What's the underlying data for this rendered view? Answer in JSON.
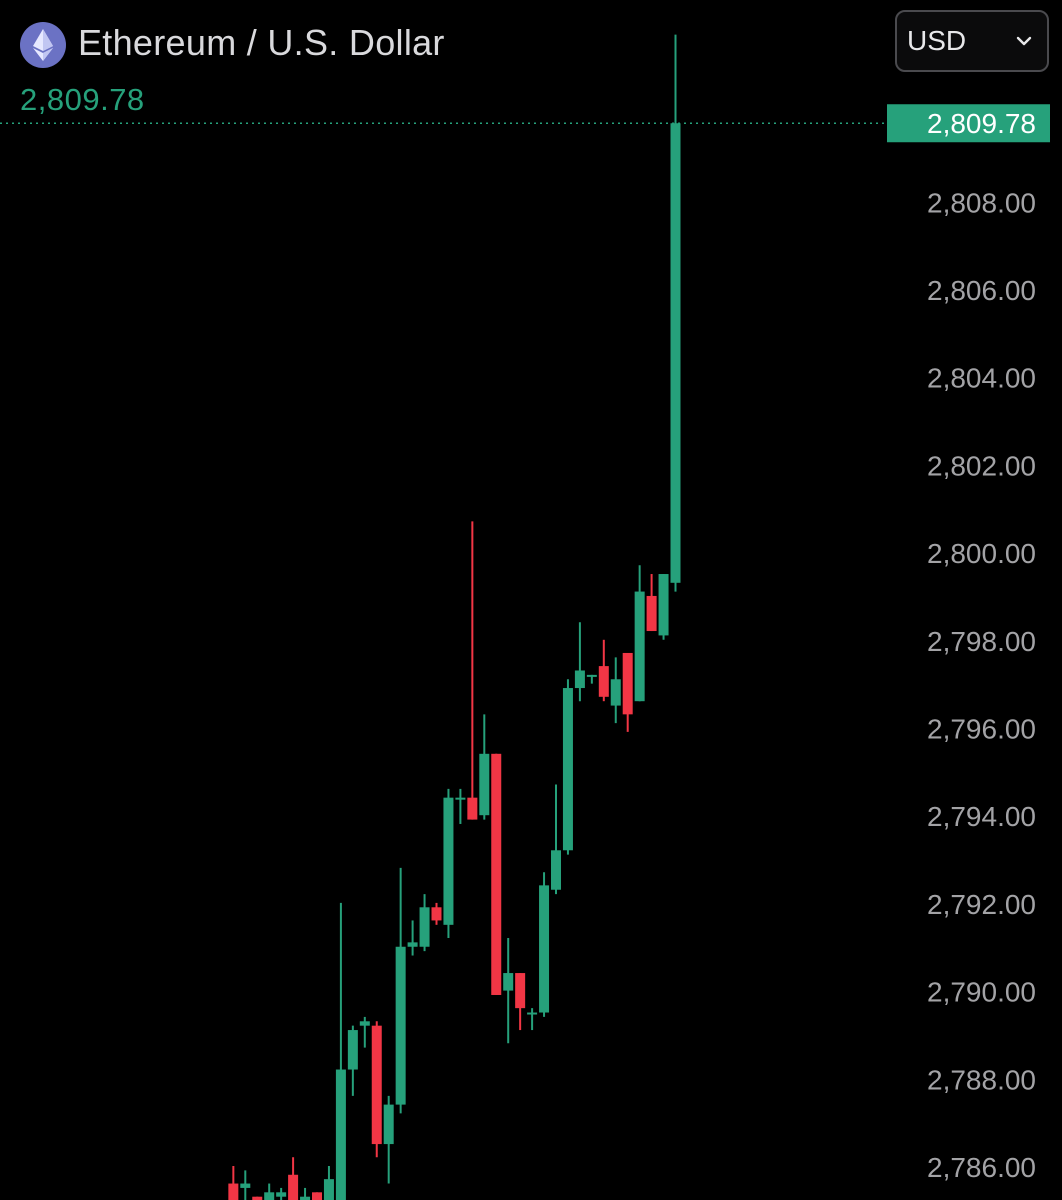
{
  "header": {
    "title": "Ethereum / U.S. Dollar",
    "last_price": "2,809.78",
    "logo_icon": "ethereum-icon"
  },
  "currency_select": {
    "selected": "USD",
    "chevron_icon": "chevron-down-icon"
  },
  "colors": {
    "background": "#000000",
    "up": "#26a17b",
    "down": "#f23645",
    "axis_text": "#a3a3a6",
    "price_line": "#26a17b"
  },
  "chart_data": {
    "type": "candlestick",
    "price_axis": {
      "ticks": [
        2786,
        2788,
        2790,
        2792,
        2794,
        2796,
        2798,
        2800,
        2802,
        2804,
        2806,
        2808
      ],
      "tick_labels": [
        "2,786.00",
        "2,788.00",
        "2,790.00",
        "2,792.00",
        "2,794.00",
        "2,796.00",
        "2,798.00",
        "2,800.00",
        "2,802.00",
        "2,804.00",
        "2,806.00",
        "2,808.00"
      ],
      "range": [
        2785.2,
        2812.0
      ],
      "position": "right"
    },
    "current_price": {
      "value": 2809.78,
      "label": "2,809.78"
    },
    "candles": [
      {
        "open": 2785.6,
        "high": 2786.0,
        "low": 2785.2,
        "close": 2785.2
      },
      {
        "open": 2785.5,
        "high": 2785.9,
        "low": 2785.2,
        "close": 2785.6
      },
      {
        "open": 2785.3,
        "high": 2785.3,
        "low": 2785.2,
        "close": 2785.2
      },
      {
        "open": 2785.2,
        "high": 2785.6,
        "low": 2785.2,
        "close": 2785.4
      },
      {
        "open": 2785.3,
        "high": 2785.5,
        "low": 2785.2,
        "close": 2785.4
      },
      {
        "open": 2785.8,
        "high": 2786.2,
        "low": 2785.2,
        "close": 2785.2
      },
      {
        "open": 2785.2,
        "high": 2785.5,
        "low": 2785.2,
        "close": 2785.3
      },
      {
        "open": 2785.4,
        "high": 2785.4,
        "low": 2785.2,
        "close": 2785.2
      },
      {
        "open": 2785.2,
        "high": 2786.0,
        "low": 2785.2,
        "close": 2785.7
      },
      {
        "open": 2785.2,
        "high": 2792.0,
        "low": 2785.2,
        "close": 2788.2
      },
      {
        "open": 2788.2,
        "high": 2789.2,
        "low": 2787.6,
        "close": 2789.1
      },
      {
        "open": 2789.2,
        "high": 2789.4,
        "low": 2788.7,
        "close": 2789.3
      },
      {
        "open": 2789.2,
        "high": 2789.3,
        "low": 2786.2,
        "close": 2786.5
      },
      {
        "open": 2786.5,
        "high": 2787.6,
        "low": 2785.6,
        "close": 2787.4
      },
      {
        "open": 2787.4,
        "high": 2792.8,
        "low": 2787.2,
        "close": 2791.0
      },
      {
        "open": 2791.0,
        "high": 2791.6,
        "low": 2790.8,
        "close": 2791.1
      },
      {
        "open": 2791.0,
        "high": 2792.2,
        "low": 2790.9,
        "close": 2791.9
      },
      {
        "open": 2791.9,
        "high": 2792.0,
        "low": 2791.5,
        "close": 2791.6
      },
      {
        "open": 2791.5,
        "high": 2794.6,
        "low": 2791.2,
        "close": 2794.4
      },
      {
        "open": 2794.4,
        "high": 2794.6,
        "low": 2793.8,
        "close": 2794.4
      },
      {
        "open": 2794.4,
        "high": 2800.7,
        "low": 2793.9,
        "close": 2793.9
      },
      {
        "open": 2794.0,
        "high": 2796.3,
        "low": 2793.9,
        "close": 2795.4
      },
      {
        "open": 2795.4,
        "high": 2795.4,
        "low": 2789.9,
        "close": 2789.9
      },
      {
        "open": 2790.0,
        "high": 2791.2,
        "low": 2788.8,
        "close": 2790.4
      },
      {
        "open": 2790.4,
        "high": 2790.4,
        "low": 2789.1,
        "close": 2789.6
      },
      {
        "open": 2789.5,
        "high": 2789.6,
        "low": 2789.1,
        "close": 2789.5
      },
      {
        "open": 2789.5,
        "high": 2792.7,
        "low": 2789.4,
        "close": 2792.4
      },
      {
        "open": 2792.3,
        "high": 2794.7,
        "low": 2792.2,
        "close": 2793.2
      },
      {
        "open": 2793.2,
        "high": 2797.1,
        "low": 2793.1,
        "close": 2796.9
      },
      {
        "open": 2796.9,
        "high": 2798.4,
        "low": 2796.6,
        "close": 2797.3
      },
      {
        "open": 2797.2,
        "high": 2797.2,
        "low": 2797.0,
        "close": 2797.2
      },
      {
        "open": 2797.4,
        "high": 2798.0,
        "low": 2796.6,
        "close": 2796.7
      },
      {
        "open": 2796.5,
        "high": 2797.6,
        "low": 2796.1,
        "close": 2797.1
      },
      {
        "open": 2797.7,
        "high": 2797.7,
        "low": 2795.9,
        "close": 2796.3
      },
      {
        "open": 2796.6,
        "high": 2799.7,
        "low": 2796.6,
        "close": 2799.1
      },
      {
        "open": 2799.0,
        "high": 2799.5,
        "low": 2798.2,
        "close": 2798.2
      },
      {
        "open": 2798.1,
        "high": 2799.5,
        "low": 2798.0,
        "close": 2799.5
      },
      {
        "open": 2799.3,
        "high": 2811.8,
        "low": 2799.1,
        "close": 2809.78
      }
    ]
  }
}
